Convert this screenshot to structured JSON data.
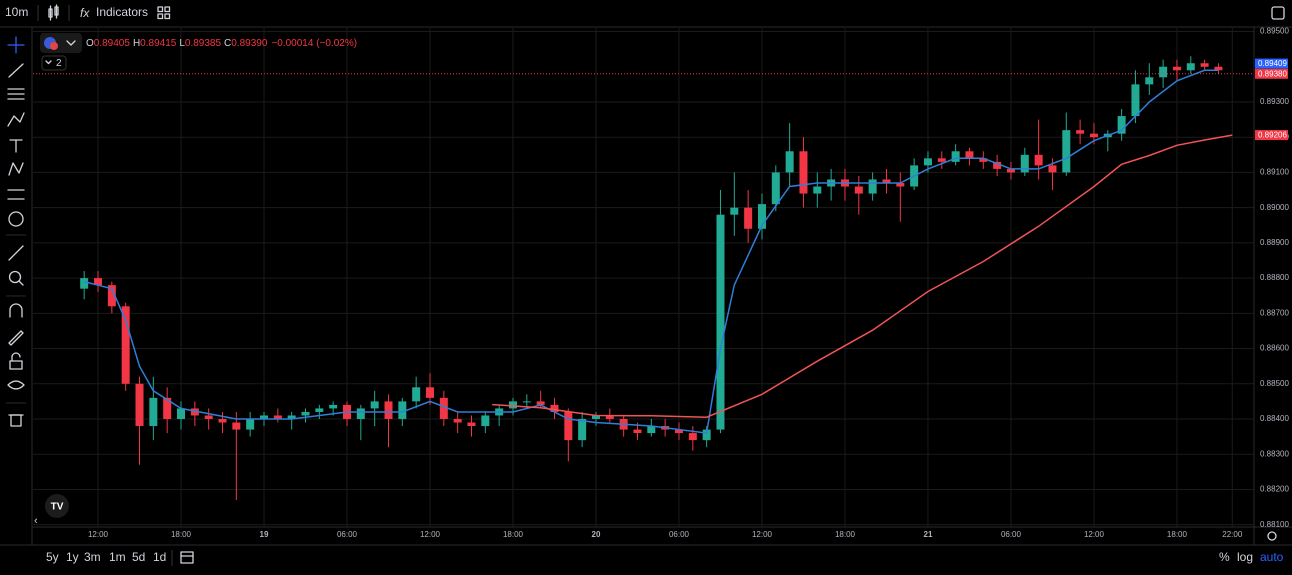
{
  "toolbar": {
    "interval": "10m",
    "indicators": "Indicators"
  },
  "legend": {
    "o_key": "O",
    "o": "0.89405",
    "h_key": "H",
    "h": "0.89415",
    "l_key": "L",
    "l": "0.89385",
    "c_key": "C",
    "c": "0.89390",
    "change": "−0.00014 (−0.02%)",
    "badge": "2"
  },
  "bottom_bar": {
    "ranges": [
      "5y",
      "1y",
      "3m",
      "1m",
      "5d",
      "1d"
    ],
    "options": [
      "%",
      "log",
      "auto"
    ]
  },
  "chart_data": {
    "type": "candlestick",
    "up_color": "#22ab94",
    "down_color": "#f23645",
    "grid": true,
    "xlim": [
      7.3,
      95.57
    ],
    "ylim": [
      0.880934,
      0.8951
    ],
    "xticks": [
      {
        "value": 12,
        "label": "12:00"
      },
      {
        "value": 18,
        "label": "18:00"
      },
      {
        "value": 24,
        "label": "19"
      },
      {
        "value": 30,
        "label": "06:00"
      },
      {
        "value": 36,
        "label": "12:00"
      },
      {
        "value": 42,
        "label": "18:00"
      },
      {
        "value": 48,
        "label": "20"
      },
      {
        "value": 54,
        "label": "06:00"
      },
      {
        "value": 60,
        "label": "12:00"
      },
      {
        "value": 66,
        "label": "18:00"
      },
      {
        "value": 72,
        "label": "21"
      },
      {
        "value": 78,
        "label": "06:00"
      },
      {
        "value": 84,
        "label": "12:00"
      },
      {
        "value": 90,
        "label": "18:00"
      },
      {
        "value": 94,
        "label": "22:00"
      }
    ],
    "yticks": [
      {
        "value": 0.881,
        "label": "0.88100"
      },
      {
        "value": 0.882,
        "label": "0.88200"
      },
      {
        "value": 0.883,
        "label": "0.88300"
      },
      {
        "value": 0.884,
        "label": "0.88400"
      },
      {
        "value": 0.885,
        "label": "0.88500"
      },
      {
        "value": 0.886,
        "label": "0.88600"
      },
      {
        "value": 0.887,
        "label": "0.88700"
      },
      {
        "value": 0.888,
        "label": "0.88800"
      },
      {
        "value": 0.889,
        "label": "0.88900"
      },
      {
        "value": 0.89,
        "label": "0.89000"
      },
      {
        "value": 0.891,
        "label": "0.89100"
      },
      {
        "value": 0.892,
        "label": "0.89200"
      },
      {
        "value": 0.893,
        "label": "0.89300"
      },
      {
        "value": 0.895,
        "label": "0.89500"
      }
    ],
    "x": [
      11,
      12,
      13,
      14,
      15,
      16,
      17,
      18,
      19,
      20,
      21,
      22,
      23,
      24,
      25,
      26,
      27,
      28,
      29,
      30,
      31,
      32,
      33,
      34,
      35,
      36,
      37,
      38,
      39,
      40,
      41,
      42,
      43,
      44,
      45,
      46,
      47,
      48,
      49,
      50,
      51,
      52,
      53,
      54,
      55,
      56,
      57,
      58,
      59,
      60,
      61,
      62,
      63,
      64,
      65,
      66,
      67,
      68,
      69,
      70,
      71,
      72,
      73,
      74,
      75,
      76,
      77,
      78,
      79,
      80,
      81,
      82,
      83,
      84,
      85,
      86,
      87,
      88,
      89,
      90,
      91,
      92,
      93
    ],
    "open": [
      0.8877,
      0.888,
      0.8878,
      0.8872,
      0.885,
      0.8838,
      0.8846,
      0.884,
      0.8843,
      0.8841,
      0.884,
      0.8839,
      0.8837,
      0.884,
      0.8841,
      0.884,
      0.8841,
      0.8842,
      0.8843,
      0.8844,
      0.884,
      0.8843,
      0.8845,
      0.884,
      0.8845,
      0.8849,
      0.8846,
      0.884,
      0.8839,
      0.8838,
      0.8841,
      0.8843,
      0.8845,
      0.8845,
      0.8844,
      0.8842,
      0.8834,
      0.884,
      0.8841,
      0.884,
      0.8837,
      0.8836,
      0.8838,
      0.8837,
      0.8836,
      0.8834,
      0.8837,
      0.8898,
      0.89,
      0.8894,
      0.8901,
      0.891,
      0.8916,
      0.8904,
      0.8906,
      0.8908,
      0.8906,
      0.8904,
      0.8908,
      0.8907,
      0.8906,
      0.8912,
      0.8914,
      0.8913,
      0.8916,
      0.8914,
      0.8913,
      0.8911,
      0.891,
      0.8915,
      0.8912,
      0.891,
      0.8922,
      0.8921,
      0.892,
      0.8921,
      0.8926,
      0.8935,
      0.8937,
      0.894,
      0.8939,
      0.8941,
      0.894
    ],
    "high": [
      0.8882,
      0.8882,
      0.8879,
      0.8873,
      0.8852,
      0.8852,
      0.8849,
      0.8845,
      0.8845,
      0.8843,
      0.8842,
      0.8842,
      0.8842,
      0.8842,
      0.8843,
      0.8842,
      0.8843,
      0.8844,
      0.8845,
      0.8845,
      0.8844,
      0.8848,
      0.8847,
      0.8846,
      0.8852,
      0.8853,
      0.8848,
      0.8842,
      0.8841,
      0.8842,
      0.8844,
      0.8846,
      0.8847,
      0.8848,
      0.8846,
      0.8843,
      0.8842,
      0.8842,
      0.8843,
      0.8841,
      0.8839,
      0.884,
      0.884,
      0.8839,
      0.8838,
      0.8838,
      0.8905,
      0.891,
      0.8905,
      0.8904,
      0.8912,
      0.8924,
      0.892,
      0.891,
      0.8911,
      0.8911,
      0.8909,
      0.891,
      0.8911,
      0.891,
      0.8914,
      0.8916,
      0.8916,
      0.8918,
      0.8917,
      0.8916,
      0.8915,
      0.8913,
      0.8917,
      0.8925,
      0.8914,
      0.8927,
      0.8925,
      0.8924,
      0.8922,
      0.8928,
      0.8939,
      0.8941,
      0.8942,
      0.8942,
      0.8943,
      0.8942,
      0.8941
    ],
    "low": [
      0.8874,
      0.8876,
      0.887,
      0.8848,
      0.8827,
      0.8834,
      0.8836,
      0.8837,
      0.8838,
      0.8837,
      0.8836,
      0.8817,
      0.8835,
      0.8838,
      0.8839,
      0.8837,
      0.8839,
      0.884,
      0.8841,
      0.8838,
      0.8834,
      0.8838,
      0.8832,
      0.8838,
      0.8843,
      0.8844,
      0.8838,
      0.8836,
      0.8835,
      0.8836,
      0.8838,
      0.8841,
      0.8843,
      0.8843,
      0.884,
      0.8828,
      0.8832,
      0.8838,
      0.8839,
      0.8835,
      0.8834,
      0.8835,
      0.8835,
      0.8834,
      0.8831,
      0.8832,
      0.8836,
      0.8892,
      0.889,
      0.8891,
      0.8899,
      0.8906,
      0.89,
      0.89,
      0.8902,
      0.8902,
      0.8898,
      0.8902,
      0.8904,
      0.8896,
      0.8905,
      0.891,
      0.8911,
      0.8912,
      0.8912,
      0.8911,
      0.8909,
      0.8908,
      0.8909,
      0.8908,
      0.8905,
      0.8909,
      0.8918,
      0.8918,
      0.8916,
      0.8919,
      0.8924,
      0.8932,
      0.8934,
      0.8936,
      0.8938,
      0.8939,
      0.8938
    ],
    "close": [
      0.888,
      0.8878,
      0.8872,
      0.885,
      0.8838,
      0.8846,
      0.884,
      0.8843,
      0.8841,
      0.884,
      0.8839,
      0.8837,
      0.884,
      0.8841,
      0.884,
      0.8841,
      0.8842,
      0.8843,
      0.8844,
      0.884,
      0.8843,
      0.8845,
      0.884,
      0.8845,
      0.8849,
      0.8846,
      0.884,
      0.8839,
      0.8838,
      0.8841,
      0.8843,
      0.8845,
      0.8845,
      0.8844,
      0.8842,
      0.8834,
      0.884,
      0.8841,
      0.884,
      0.8837,
      0.8836,
      0.8838,
      0.8837,
      0.8836,
      0.8834,
      0.8837,
      0.8898,
      0.89,
      0.8894,
      0.8901,
      0.891,
      0.8916,
      0.8904,
      0.8906,
      0.8908,
      0.8906,
      0.8904,
      0.8908,
      0.8907,
      0.8906,
      0.8912,
      0.8914,
      0.8913,
      0.8916,
      0.8914,
      0.8913,
      0.8911,
      0.891,
      0.8915,
      0.8912,
      0.891,
      0.8922,
      0.8921,
      0.892,
      0.8921,
      0.8926,
      0.8935,
      0.8937,
      0.894,
      0.8939,
      0.8941,
      0.894,
      0.8939
    ],
    "lines": [
      {
        "color": "#2f7fd8",
        "x": [
          11,
          13,
          14,
          15,
          16,
          18,
          22,
          26,
          30,
          34,
          36,
          38,
          42,
          44,
          46,
          48,
          52,
          56,
          57,
          58,
          60,
          62,
          64,
          66,
          70,
          72,
          74,
          76,
          78,
          80,
          82,
          84,
          86,
          88,
          90,
          92,
          93
        ],
        "values": [
          0.8879,
          0.8877,
          0.8868,
          0.8855,
          0.8848,
          0.8843,
          0.884,
          0.884,
          0.8842,
          0.8842,
          0.8845,
          0.8842,
          0.8842,
          0.8844,
          0.884,
          0.8839,
          0.8838,
          0.8836,
          0.886,
          0.8878,
          0.8895,
          0.8906,
          0.8907,
          0.8907,
          0.8907,
          0.8911,
          0.8914,
          0.8914,
          0.8911,
          0.8911,
          0.8914,
          0.8919,
          0.8922,
          0.893,
          0.8936,
          0.8939,
          0.8939
        ]
      },
      {
        "color": "#f05454",
        "x": [
          40.5,
          44,
          48,
          52,
          56,
          60,
          64,
          68,
          72,
          76,
          80,
          84,
          86,
          88,
          90,
          92,
          94
        ],
        "values": [
          0.88441,
          0.88432,
          0.8841,
          0.88409,
          0.88405,
          0.8847,
          0.88564,
          0.88652,
          0.88762,
          0.88847,
          0.88947,
          0.8906,
          0.89123,
          0.89148,
          0.89177,
          0.89192,
          0.89206
        ]
      }
    ],
    "price_markers": [
      {
        "value": 0.89409,
        "label": "0.89409",
        "color": "#2962ff"
      },
      {
        "value": 0.8938,
        "label": "0.89380",
        "color": "#f23645"
      },
      {
        "value": 0.89206,
        "label": "0.89206",
        "color": "#f23645"
      }
    ]
  }
}
